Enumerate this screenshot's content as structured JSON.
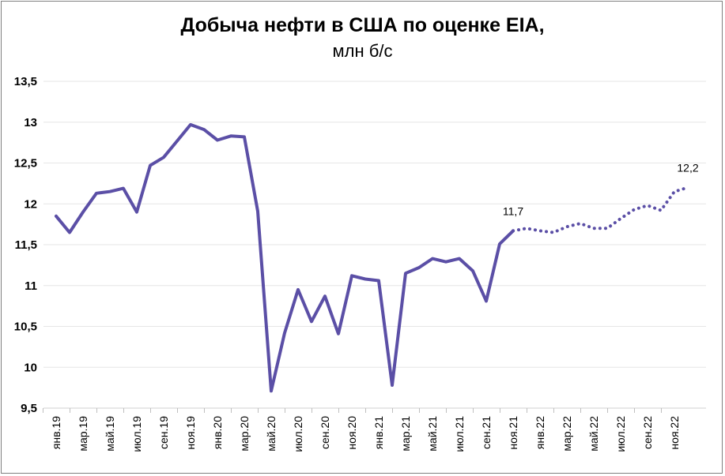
{
  "chart_data": {
    "type": "line",
    "title": "Добыча нефти в США по оценке EIA,",
    "subtitle": "млн б/с",
    "xlabel": "",
    "ylabel": "",
    "ylim": [
      9.5,
      13.5
    ],
    "yticks": [
      "9,5",
      "10",
      "10,5",
      "11",
      "11,5",
      "12",
      "12,5",
      "13",
      "13,5"
    ],
    "ytick_values": [
      9.5,
      10,
      10.5,
      11,
      11.5,
      12,
      12.5,
      13,
      13.5
    ],
    "grid": true,
    "legend": "none",
    "x": [
      "янв.19",
      "фев.19",
      "мар.19",
      "апр.19",
      "май.19",
      "июн.19",
      "июл.19",
      "авг.19",
      "сен.19",
      "окт.19",
      "ноя.19",
      "дек.19",
      "янв.20",
      "фев.20",
      "мар.20",
      "апр.20",
      "май.20",
      "июн.20",
      "июл.20",
      "авг.20",
      "сен.20",
      "окт.20",
      "ноя.20",
      "дек.20",
      "янв.21",
      "фев.21",
      "мар.21",
      "апр.21",
      "май.21",
      "июн.21",
      "июл.21",
      "авг.21",
      "сен.21",
      "окт.21",
      "ноя.21",
      "дек.21",
      "янв.22",
      "фев.22",
      "мар.22",
      "апр.22",
      "май.22",
      "июн.22",
      "июл.22",
      "авг.22",
      "сен.22",
      "окт.22",
      "ноя.22",
      "дек.22"
    ],
    "x_tick_labels": [
      "янв.19",
      "мар.19",
      "май.19",
      "июл.19",
      "сен.19",
      "ноя.19",
      "янв.20",
      "мар.20",
      "май.20",
      "июл.20",
      "сен.20",
      "ноя.20",
      "янв.21",
      "мар.21",
      "май.21",
      "июл.21",
      "сен.21",
      "ноя.21",
      "янв.22",
      "мар.22",
      "май.22",
      "июл.22",
      "сен.22",
      "ноя.22"
    ],
    "series": [
      {
        "style": "solid",
        "color": "#5b4fa6",
        "values": [
          11.85,
          11.65,
          11.9,
          12.13,
          12.15,
          12.19,
          11.9,
          12.47,
          12.57,
          12.77,
          12.97,
          12.91,
          12.78,
          12.83,
          12.82,
          11.91,
          9.71,
          10.42,
          10.95,
          10.56,
          10.87,
          10.41,
          11.12,
          11.08,
          11.06,
          9.78,
          11.15,
          11.22,
          11.33,
          11.29,
          11.33,
          11.18,
          10.81,
          11.51,
          11.67,
          null,
          null,
          null,
          null,
          null,
          null,
          null,
          null,
          null,
          null,
          null,
          null,
          null
        ]
      },
      {
        "style": "dotted",
        "color": "#5b4fa6",
        "values": [
          null,
          null,
          null,
          null,
          null,
          null,
          null,
          null,
          null,
          null,
          null,
          null,
          null,
          null,
          null,
          null,
          null,
          null,
          null,
          null,
          null,
          null,
          null,
          null,
          null,
          null,
          null,
          null,
          null,
          null,
          null,
          null,
          null,
          null,
          11.67,
          11.7,
          11.67,
          11.65,
          11.72,
          11.76,
          11.7,
          11.7,
          11.82,
          11.93,
          11.98,
          11.92,
          12.15,
          12.2
        ]
      }
    ],
    "annotations": [
      {
        "index": 34,
        "value": 11.67,
        "text": "11,7"
      },
      {
        "index": 47,
        "value": 12.2,
        "text": "12,2"
      }
    ]
  }
}
